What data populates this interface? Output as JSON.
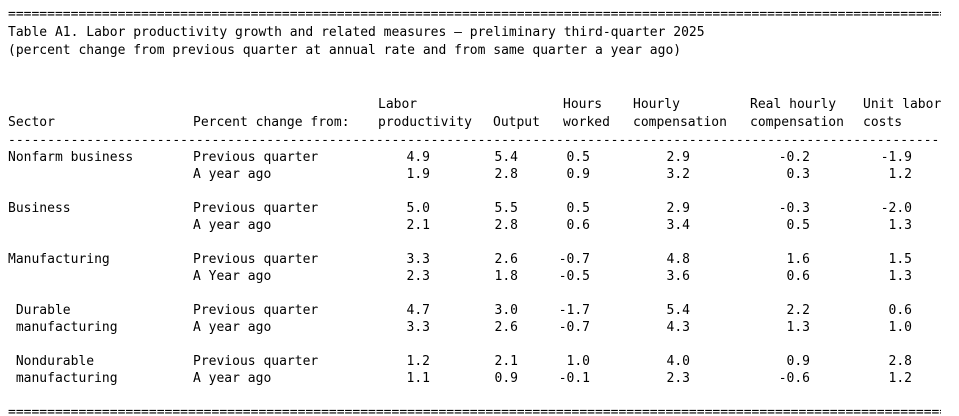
{
  "border_char": "=",
  "separator_char": "-",
  "title": "Table A1. Labor productivity growth and related measures – preliminary third-quarter 2025",
  "subtitle": "(percent change from previous quarter at annual rate and from same quarter a year ago)",
  "columns": {
    "sector": "Sector",
    "percent_change": "Percent change from:",
    "labor_productivity": "Labor\nproductivity",
    "output": "Output",
    "hours_worked": "Hours\nworked",
    "hourly_compensation": "Hourly\ncompensation",
    "real_hourly_compensation": "Real hourly\ncompensation",
    "unit_labor_costs": "Unit labor\ncosts"
  },
  "table": {
    "groups": [
      {
        "sector": [
          "Nonfarm business",
          ""
        ],
        "rows": [
          {
            "period": "Previous quarter",
            "values": [
              "4.9",
              "5.4",
              "0.5",
              "2.9",
              "-0.2",
              "-1.9"
            ]
          },
          {
            "period": "A year ago",
            "values": [
              "1.9",
              "2.8",
              "0.9",
              "3.2",
              "0.3",
              "1.2"
            ]
          }
        ]
      },
      {
        "sector": [
          "Business",
          ""
        ],
        "rows": [
          {
            "period": "Previous quarter",
            "values": [
              "5.0",
              "5.5",
              "0.5",
              "2.9",
              "-0.3",
              "-2.0"
            ]
          },
          {
            "period": "A year ago",
            "values": [
              "2.1",
              "2.8",
              "0.6",
              "3.4",
              "0.5",
              "1.3"
            ]
          }
        ]
      },
      {
        "sector": [
          "Manufacturing",
          ""
        ],
        "rows": [
          {
            "period": "Previous quarter",
            "values": [
              "3.3",
              "2.6",
              "-0.7",
              "4.8",
              "1.6",
              "1.5"
            ]
          },
          {
            "period": "A Year ago",
            "values": [
              "2.3",
              "1.8",
              "-0.5",
              "3.6",
              "0.6",
              "1.3"
            ]
          }
        ]
      },
      {
        "sector": [
          " Durable",
          " manufacturing"
        ],
        "rows": [
          {
            "period": "Previous quarter",
            "values": [
              "4.7",
              "3.0",
              "-1.7",
              "5.4",
              "2.2",
              "0.6"
            ]
          },
          {
            "period": "A year ago",
            "values": [
              "3.3",
              "2.6",
              "-0.7",
              "4.3",
              "1.3",
              "1.0"
            ]
          }
        ]
      },
      {
        "sector": [
          " Nondurable",
          " manufacturing"
        ],
        "rows": [
          {
            "period": "Previous quarter",
            "values": [
              "1.2",
              "2.1",
              "1.0",
              "4.0",
              "0.9",
              "2.8"
            ]
          },
          {
            "period": "A year ago",
            "values": [
              "1.1",
              "0.9",
              "-0.1",
              "2.3",
              "-0.6",
              "1.2"
            ]
          }
        ]
      }
    ]
  }
}
